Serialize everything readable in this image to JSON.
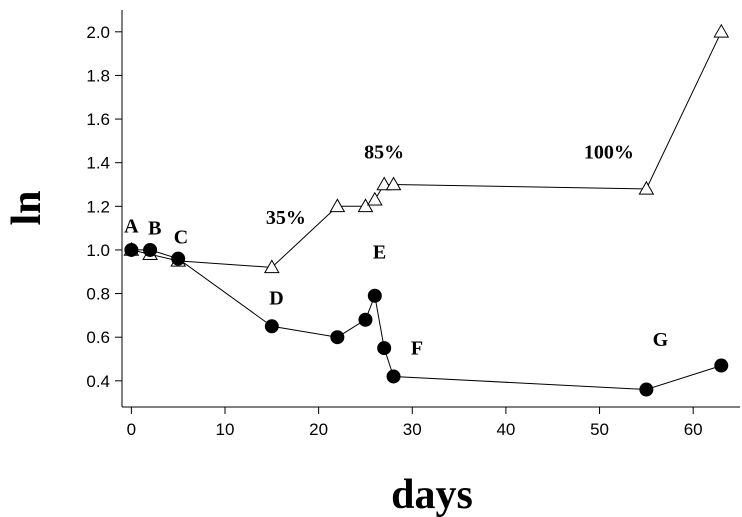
{
  "chart_data": {
    "type": "line",
    "title": "",
    "xlabel": "days",
    "ylabel": "ln",
    "xlim": [
      -1,
      65
    ],
    "ylim": [
      0.28,
      2.1
    ],
    "x_ticks": [
      0,
      10,
      20,
      30,
      40,
      50,
      60
    ],
    "y_ticks": [
      0.4,
      0.6,
      0.8,
      1.0,
      1.2,
      1.4,
      1.6,
      1.8,
      2.0
    ],
    "x_tick_labels": [
      "0",
      "10",
      "20",
      "30",
      "40",
      "50",
      "60"
    ],
    "y_tick_labels": [
      "0.4",
      "0.6",
      "0.8",
      "1.0",
      "1.2",
      "1.4",
      "1.6",
      "1.8",
      "2.0"
    ],
    "grid": false,
    "legend": "none",
    "series": [
      {
        "marker": "triangle-open",
        "color": "#000000",
        "x": [
          0,
          2,
          5,
          15,
          22,
          25,
          26,
          27,
          28,
          55,
          63
        ],
        "y": [
          1.0,
          0.98,
          0.95,
          0.92,
          1.2,
          1.2,
          1.23,
          1.3,
          1.3,
          1.28,
          2.0
        ]
      },
      {
        "marker": "circle-filled",
        "color": "#000000",
        "x": [
          0,
          2,
          5,
          15,
          22,
          25,
          26,
          27,
          28,
          55,
          63
        ],
        "y": [
          1.0,
          1.0,
          0.96,
          0.65,
          0.6,
          0.68,
          0.79,
          0.55,
          0.42,
          0.36,
          0.47
        ]
      }
    ],
    "annotations": [
      {
        "text": "A",
        "x": 0,
        "y": 1.08
      },
      {
        "text": "B",
        "x": 2.5,
        "y": 1.07
      },
      {
        "text": "C",
        "x": 5.3,
        "y": 1.03
      },
      {
        "text": "35%",
        "x": 16.5,
        "y": 1.12
      },
      {
        "text": "D",
        "x": 15.5,
        "y": 0.75
      },
      {
        "text": "85%",
        "x": 27,
        "y": 1.42
      },
      {
        "text": "E",
        "x": 26.5,
        "y": 0.96
      },
      {
        "text": "F",
        "x": 30.5,
        "y": 0.52
      },
      {
        "text": "100%",
        "x": 51,
        "y": 1.42
      },
      {
        "text": "G",
        "x": 56.5,
        "y": 0.56
      }
    ]
  }
}
